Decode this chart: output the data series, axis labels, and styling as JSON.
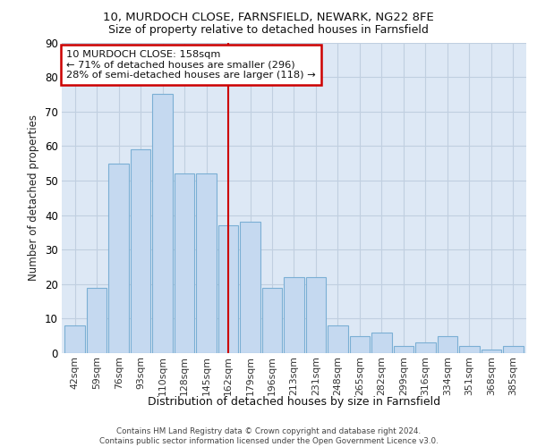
{
  "title1": "10, MURDOCH CLOSE, FARNSFIELD, NEWARK, NG22 8FE",
  "title2": "Size of property relative to detached houses in Farnsfield",
  "xlabel": "Distribution of detached houses by size in Farnsfield",
  "ylabel": "Number of detached properties",
  "categories": [
    "42sqm",
    "59sqm",
    "76sqm",
    "93sqm",
    "110sqm",
    "128sqm",
    "145sqm",
    "162sqm",
    "179sqm",
    "196sqm",
    "213sqm",
    "231sqm",
    "248sqm",
    "265sqm",
    "282sqm",
    "299sqm",
    "316sqm",
    "334sqm",
    "351sqm",
    "368sqm",
    "385sqm"
  ],
  "values": [
    8,
    19,
    55,
    59,
    75,
    52,
    52,
    37,
    38,
    19,
    22,
    22,
    8,
    5,
    6,
    2,
    3,
    5,
    2,
    1,
    2
  ],
  "bar_color": "#c5d9f0",
  "bar_edge_color": "#7bafd4",
  "vline_x_index": 7,
  "vline_color": "#cc0000",
  "annotation_text": "10 MURDOCH CLOSE: 158sqm\n← 71% of detached houses are smaller (296)\n28% of semi-detached houses are larger (118) →",
  "annotation_box_color": "white",
  "annotation_border_color": "#cc0000",
  "ylim": [
    0,
    90
  ],
  "yticks": [
    0,
    10,
    20,
    30,
    40,
    50,
    60,
    70,
    80,
    90
  ],
  "grid_color": "#c0cfe0",
  "background_color": "#dde8f5",
  "footer_text": "Contains HM Land Registry data © Crown copyright and database right 2024.\nContains public sector information licensed under the Open Government Licence v3.0."
}
